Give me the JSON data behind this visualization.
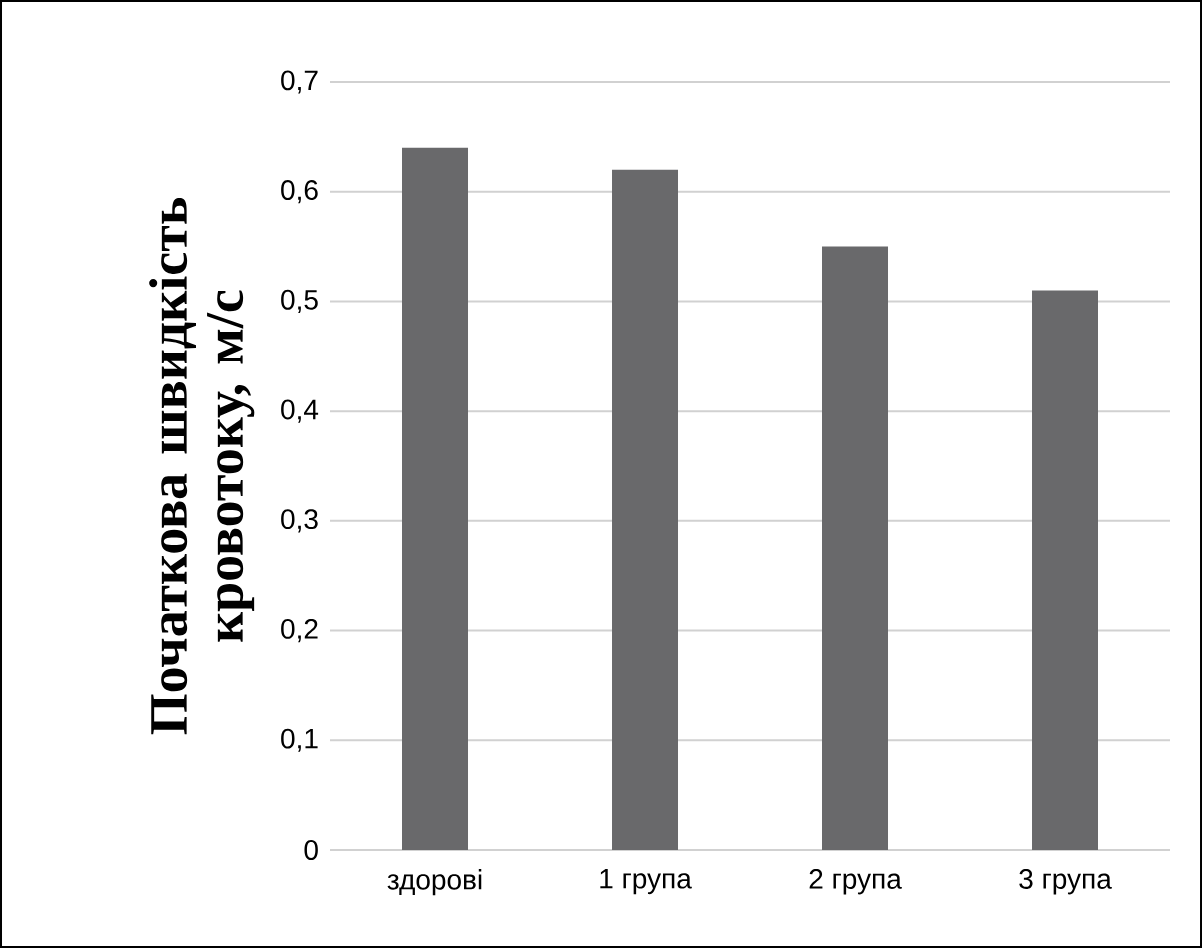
{
  "chart_data": {
    "type": "bar",
    "ylabel": "Початкова швидкість кровотоку, м/с",
    "categories": [
      "здорові",
      "1 група",
      "2 група",
      "3 група"
    ],
    "values": [
      0.64,
      0.62,
      0.55,
      0.51
    ],
    "color": "#69696b",
    "ylim": [
      0,
      0.7
    ],
    "yticks": [
      {
        "value": 0,
        "label": "0"
      },
      {
        "value": 0.1,
        "label": "0,1"
      },
      {
        "value": 0.2,
        "label": "0,2"
      },
      {
        "value": 0.3,
        "label": "0,3"
      },
      {
        "value": 0.4,
        "label": "0,4"
      },
      {
        "value": 0.5,
        "label": "0,5"
      },
      {
        "value": 0.6,
        "label": "0,6"
      },
      {
        "value": 0.7,
        "label": "0,7"
      }
    ],
    "grid": "y"
  }
}
